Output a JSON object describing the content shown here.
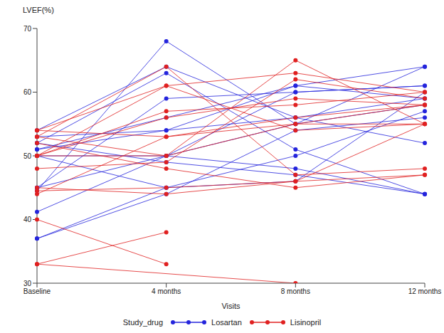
{
  "chart_data": {
    "type": "line",
    "y_label": "LVEF(%)",
    "x_label": "Visits",
    "legend_title": "Study_drug",
    "categories": [
      "Baseline",
      "4 months",
      "8 months",
      "12 months"
    ],
    "ylim": [
      30,
      70
    ],
    "yticks": [
      30,
      40,
      50,
      60,
      70
    ],
    "marker": "circle",
    "series": [
      {
        "name": "Losartan",
        "color": "#2424dc",
        "values": [
          [
            44.5,
            68,
            55,
            58
          ],
          [
            54,
            64,
            56,
            52
          ],
          [
            52,
            63,
            51,
            44
          ],
          [
            45,
            59,
            60,
            61
          ],
          [
            51,
            56,
            61,
            64
          ],
          [
            53,
            54,
            61,
            59
          ],
          [
            50,
            50,
            48,
            44
          ],
          [
            52,
            49,
            47,
            44
          ],
          [
            41.2,
            50,
            55,
            64
          ],
          [
            37,
            45,
            50,
            57
          ],
          [
            37,
            44,
            54,
            56
          ],
          [
            45,
            50,
            60,
            61
          ],
          [
            50,
            45,
            46,
            60
          ],
          [
            51,
            54,
            56,
            59
          ]
        ]
      },
      {
        "name": "Lisinopril",
        "color": "#e02020",
        "values": [
          [
            54,
            61,
            63,
            60
          ],
          [
            53,
            64,
            47,
            48
          ],
          [
            50,
            61,
            54,
            55
          ],
          [
            50,
            57,
            58,
            60
          ],
          [
            48,
            49,
            62,
            59
          ],
          [
            44,
            53,
            56,
            58
          ],
          [
            50,
            50,
            65,
            55
          ],
          [
            52,
            48,
            45,
            47
          ],
          [
            44.5,
            45,
            46,
            47
          ],
          [
            45,
            44,
            46,
            55
          ],
          [
            50,
            56,
            59,
            58
          ],
          [
            53,
            50,
            55,
            55
          ],
          [
            40,
            33,
            null,
            null
          ],
          [
            33,
            38,
            null,
            null
          ],
          [
            33,
            null,
            30,
            null
          ],
          [
            54,
            53,
            55,
            58
          ]
        ]
      }
    ]
  }
}
